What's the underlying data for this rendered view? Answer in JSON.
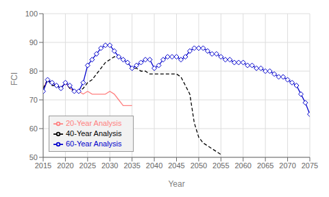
{
  "chart_data": {
    "type": "line",
    "title": "",
    "xlabel": "Year",
    "ylabel": "FCI",
    "xlim": [
      2015,
      2075
    ],
    "ylim": [
      50,
      100
    ],
    "xticks": [
      2015,
      2020,
      2025,
      2030,
      2035,
      2040,
      2045,
      2050,
      2055,
      2060,
      2065,
      2070,
      2075
    ],
    "yticks": [
      50,
      60,
      70,
      80,
      90,
      100
    ],
    "grid": true,
    "legend": "lower left",
    "x": [
      2015,
      2016,
      2017,
      2018,
      2019,
      2020,
      2021,
      2022,
      2023,
      2024,
      2025,
      2026,
      2027,
      2028,
      2029,
      2030,
      2031,
      2032,
      2033,
      2034,
      2035,
      2036,
      2037,
      2038,
      2039,
      2040,
      2041,
      2042,
      2043,
      2044,
      2045,
      2046,
      2047,
      2048,
      2049,
      2050,
      2051,
      2052,
      2053,
      2054,
      2055,
      2056,
      2057,
      2058,
      2059,
      2060,
      2061,
      2062,
      2063,
      2064,
      2065,
      2066,
      2067,
      2068,
      2069,
      2070,
      2071,
      2072,
      2073,
      2074,
      2075
    ],
    "series": [
      {
        "name": "20-Year Analysis",
        "color": "#FF8080",
        "line_style": "solid",
        "marker": "none",
        "values": [
          74,
          77,
          76,
          75,
          74,
          76,
          74,
          73,
          73,
          72,
          73,
          72,
          72,
          72,
          72,
          73,
          72,
          70,
          68,
          68,
          68,
          null,
          null,
          null,
          null,
          null,
          null,
          null,
          null,
          null,
          null,
          null,
          null,
          null,
          null,
          null,
          null,
          null,
          null,
          null,
          null,
          null,
          null,
          null,
          null,
          null,
          null,
          null,
          null,
          null,
          null,
          null,
          null,
          null,
          null,
          null,
          null,
          null,
          null,
          null,
          null
        ]
      },
      {
        "name": "40-Year Analysis",
        "color": "#000000",
        "line_style": "dashed",
        "marker": "none",
        "values": [
          74,
          77,
          75,
          75,
          74,
          76,
          74,
          73,
          73,
          74,
          76,
          77,
          79,
          81,
          83,
          84,
          85,
          85,
          84,
          83,
          81,
          81,
          80,
          80,
          79,
          79,
          79,
          79,
          79,
          79,
          79,
          78,
          75,
          72,
          62,
          57,
          55,
          54,
          53,
          52,
          51,
          null,
          null,
          null,
          null,
          null,
          null,
          null,
          null,
          null,
          null,
          null,
          null,
          null,
          null,
          null,
          null,
          null,
          null,
          null,
          null
        ]
      },
      {
        "name": "60-Year Analysis",
        "color": "#0000CC",
        "line_style": "solid",
        "marker": "diamond",
        "values": [
          73,
          77,
          76,
          75,
          74,
          76,
          75,
          73,
          73,
          76,
          82,
          84,
          86,
          88,
          89,
          89,
          87,
          85,
          84,
          83,
          81,
          82,
          83,
          84,
          84,
          81,
          82,
          84,
          85,
          85,
          85,
          84,
          85,
          87,
          88,
          88,
          88,
          87,
          86,
          86,
          85,
          84,
          84,
          83,
          83,
          83,
          82,
          82,
          81,
          81,
          80,
          80,
          79,
          78,
          78,
          77,
          76,
          75,
          72,
          69,
          65
        ]
      }
    ]
  }
}
